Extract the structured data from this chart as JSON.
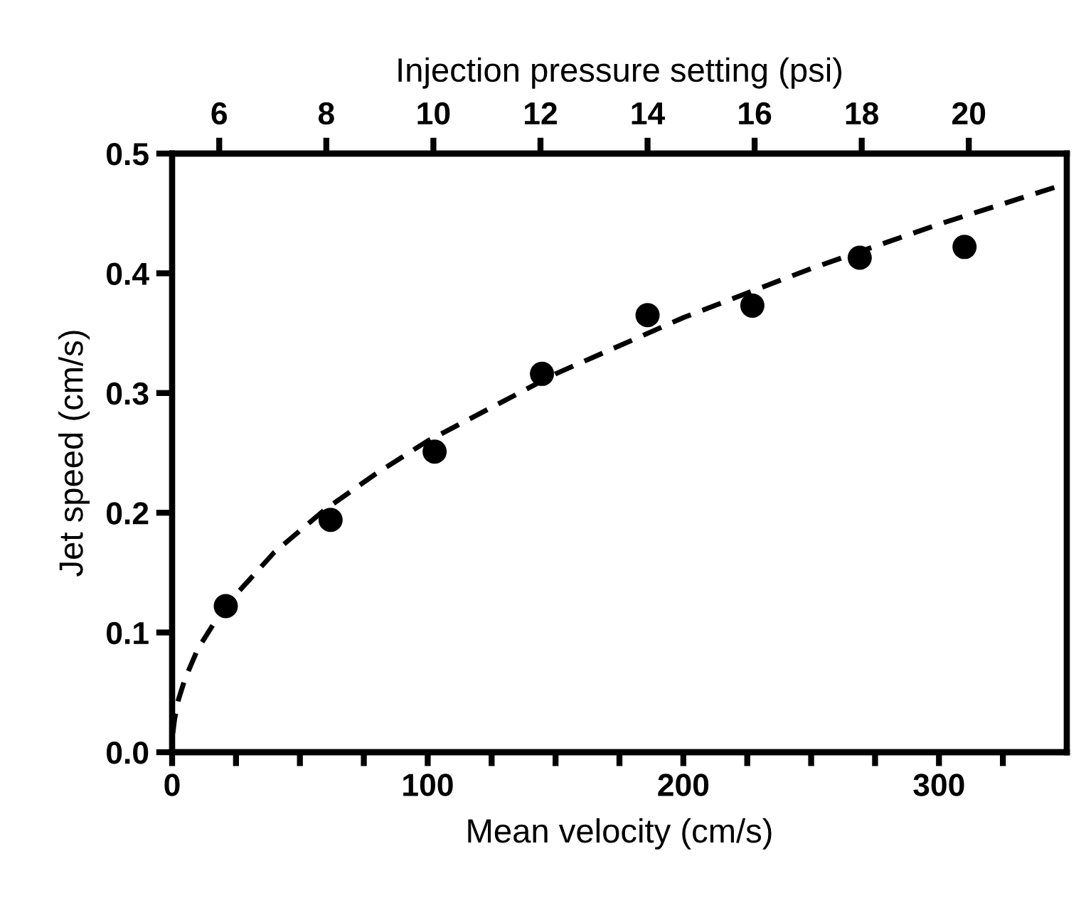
{
  "chart_data": {
    "type": "scatter",
    "xlabel": "Mean velocity (cm/s)",
    "ylabel": "Jet speed (cm/s)",
    "x2label": "Injection pressure setting (psi)",
    "xlim": [
      0,
      350
    ],
    "ylim": [
      0,
      0.5
    ],
    "x2lim": [
      5.12,
      21.83
    ],
    "xticks": [
      0,
      {
        "value": 25,
        "label": null
      },
      {
        "value": 50,
        "label": null
      },
      {
        "value": 75,
        "label": null
      },
      100,
      {
        "value": 125,
        "label": null
      },
      {
        "value": 150,
        "label": null
      },
      {
        "value": 175,
        "label": null
      },
      200,
      {
        "value": 225,
        "label": null
      },
      {
        "value": 250,
        "label": null
      },
      {
        "value": 275,
        "label": null
      },
      300,
      {
        "value": 325,
        "label": null
      }
    ],
    "yticks": [
      {
        "value": 0,
        "label": "0.0"
      },
      0.1,
      0.2,
      0.3,
      0.4,
      0.5
    ],
    "x2ticks": [
      6,
      8,
      10,
      12,
      14,
      16,
      18,
      20
    ],
    "grid": false,
    "legend": false,
    "series": [
      {
        "color": "#000000",
        "marker": "circle",
        "x": [
          21,
          62,
          102.7,
          144.7,
          186,
          227,
          269,
          310
        ],
        "values": [
          0.122,
          0.194,
          0.251,
          0.316,
          0.365,
          0.373,
          0.413,
          0.422
        ]
      },
      {
        "type": "line",
        "color": "#000000",
        "line_style": "dashed",
        "marker": "none",
        "x": [
          0.3,
          1,
          2.5,
          5,
          10,
          20,
          40,
          60,
          80,
          100,
          150,
          200,
          250,
          300,
          350
        ],
        "values": [
          0.016,
          0.028,
          0.044,
          0.061,
          0.086,
          0.12,
          0.167,
          0.203,
          0.233,
          0.26,
          0.316,
          0.363,
          0.404,
          0.441,
          0.475
        ]
      }
    ]
  }
}
